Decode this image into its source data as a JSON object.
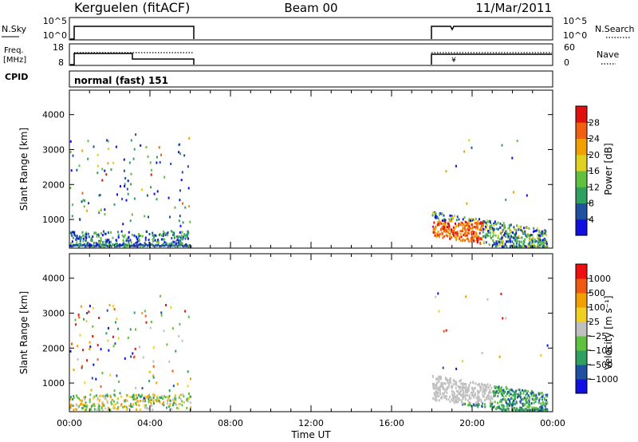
{
  "header": {
    "station": "Kerguelen (fitACF)",
    "beam": "Beam 00",
    "date": "11/Mar/2011"
  },
  "top_strip": {
    "left_label_1": "N.Sky",
    "left_label_2": "Freq.",
    "left_label_2b": "[MHz]",
    "left_label_3": "CPID",
    "right_label_1": "N.Search",
    "right_label_2": "Nave",
    "nsky_ticks": [
      "10^5",
      "10^0"
    ],
    "nsky_right_ticks": [
      "10^5",
      "10^0"
    ],
    "freq_ticks": [
      "18",
      "8"
    ],
    "nave_ticks": [
      "60",
      "0"
    ],
    "cpid_text": "normal (fast) 151"
  },
  "colors": {
    "power_scale": [
      "#1010e0",
      "#2050a0",
      "#30a060",
      "#60c040",
      "#e0d020",
      "#f0a000",
      "#f06010",
      "#e01010"
    ],
    "velocity_scale": [
      "#ee1010",
      "#f05a10",
      "#f0a000",
      "#f0d020",
      "#c0c0c0",
      "#60c040",
      "#30a060",
      "#2050a0",
      "#1010e0"
    ]
  },
  "chart_data": [
    {
      "type": "heatmap",
      "title": "",
      "xlabel": "",
      "ylabel": "Slant Range [km]",
      "xlim": [
        0,
        24
      ],
      "ylim": [
        180,
        4700
      ],
      "y_ticks": [
        "1000",
        "2000",
        "3000",
        "4000"
      ],
      "colorbar_label": "Power [dB]",
      "colorbar_ticks": [
        "4",
        "8",
        "12",
        "16",
        "20",
        "24",
        "28"
      ],
      "data_windows_hours": [
        [
          0,
          6
        ],
        [
          18,
          24
        ]
      ]
    },
    {
      "type": "heatmap",
      "title": "",
      "xlabel": "Time UT",
      "ylabel": "Slant Range [km]",
      "xlim": [
        0,
        24
      ],
      "ylim": [
        180,
        4700
      ],
      "x_ticks": [
        "00:00",
        "04:00",
        "08:00",
        "12:00",
        "16:00",
        "20:00",
        "00:00"
      ],
      "y_ticks": [
        "1000",
        "2000",
        "3000",
        "4000"
      ],
      "colorbar_label": "Velocity [m s⁻¹]",
      "colorbar_ticks": [
        "1000",
        "500",
        "100",
        "25",
        "−25",
        "−100",
        "−500",
        "−1000"
      ],
      "data_windows_hours": [
        [
          0,
          6
        ],
        [
          18,
          24
        ]
      ]
    }
  ]
}
